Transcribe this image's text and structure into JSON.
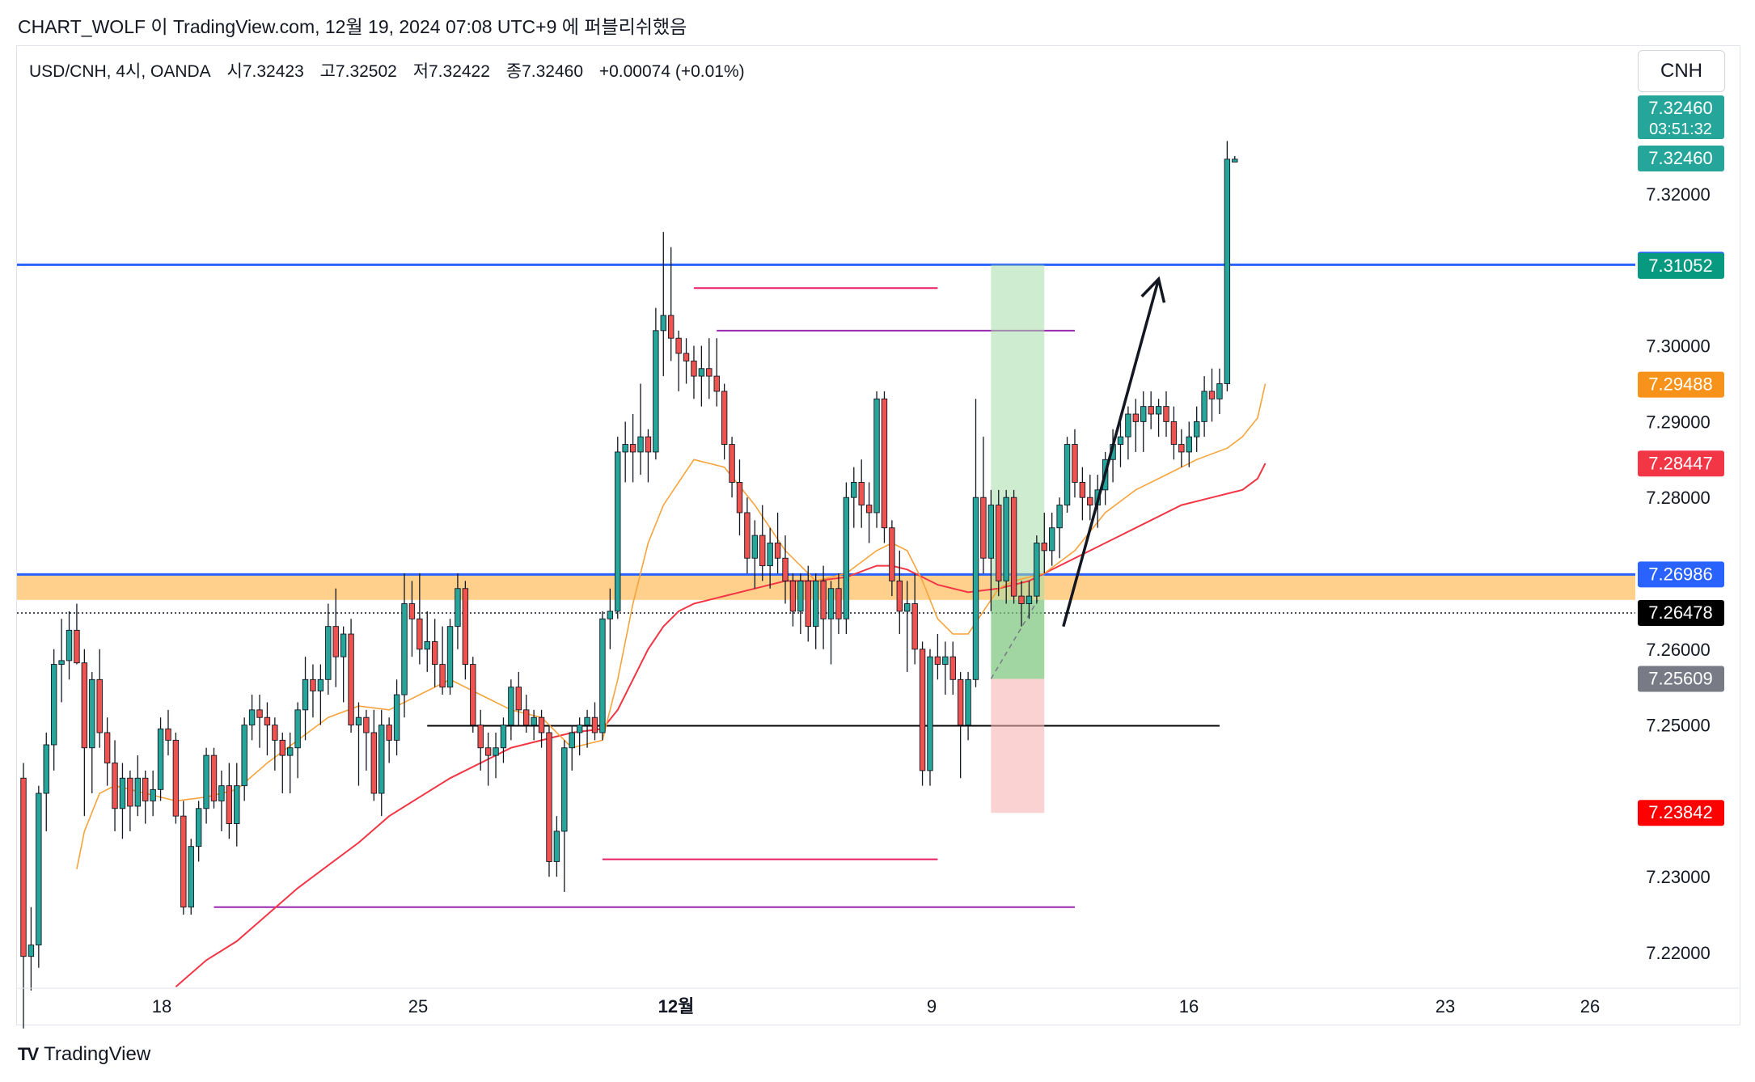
{
  "header": {
    "publisher_line": "CHART_WOLF 이 TradingView.com, 12월 19, 2024 07:08 UTC+9 에 퍼블리쉬했음"
  },
  "legend": {
    "symbol": "USD/CNH, 4시, OANDA",
    "open": "시7.32423",
    "high": "고7.32502",
    "low": "저7.32422",
    "close": "종7.32460",
    "change": "+0.00074 (+0.01%)"
  },
  "currency_button": "CNH",
  "footer": {
    "brand": "TradingView"
  },
  "colors": {
    "up": "#26a69a",
    "down": "#ef5350",
    "blue_level": "#2962ff",
    "zone": "#ffc46e",
    "ema_fast": "#f7a33b",
    "ema_slow": "#f23645",
    "magenta": "#e91e63",
    "purple": "#9c27b0"
  },
  "chart_data": {
    "type": "candlestick",
    "ylim": [
      7.2155,
      7.3395
    ],
    "y_ticks": [
      "7.32000",
      "7.30000",
      "7.29000",
      "7.28000",
      "7.26000",
      "7.25000",
      "7.23000",
      "7.22000"
    ],
    "y_tick_values": [
      7.32,
      7.3,
      7.29,
      7.28,
      7.26,
      7.25,
      7.23,
      7.22
    ],
    "x_ticks": [
      "18",
      "25",
      "12월",
      "9",
      "16",
      "23",
      "26"
    ],
    "price_tags": [
      {
        "label": "7.32460",
        "value": 7.3246,
        "color": "#26a69a",
        "extra": "03:51:32"
      },
      {
        "label": "7.32460",
        "value": 7.32472,
        "color": "#26a69a"
      },
      {
        "label": "7.31068",
        "value": 7.31068,
        "color": "#2962ff"
      },
      {
        "label": "7.31052",
        "value": 7.31052,
        "color": "#089981"
      },
      {
        "label": "7.29488",
        "value": 7.29488,
        "color": "#f7931a"
      },
      {
        "label": "7.28447",
        "value": 7.28447,
        "color": "#f23645"
      },
      {
        "label": "7.26986",
        "value": 7.26986,
        "color": "#2962ff"
      },
      {
        "label": "7.26478",
        "value": 7.26478,
        "color": "#000000"
      },
      {
        "label": "7.25609",
        "value": 7.25609,
        "color": "#787b86"
      },
      {
        "label": "7.23842",
        "value": 7.23842,
        "color": "#ff0000"
      }
    ],
    "levels": [
      {
        "value": 7.31068,
        "color": "#2962ff"
      },
      {
        "value": 7.26986,
        "color": "#2962ff"
      }
    ],
    "zone": {
      "from": 7.2665,
      "to": 7.2698
    },
    "candles": [
      [
        7.243,
        7.245,
        7.21,
        7.2195
      ],
      [
        7.2195,
        7.226,
        7.215,
        7.221
      ],
      [
        7.221,
        7.242,
        7.218,
        7.241
      ],
      [
        7.241,
        7.249,
        7.236,
        7.2474
      ],
      [
        7.2474,
        7.26,
        7.244,
        7.258
      ],
      [
        7.258,
        7.264,
        7.253,
        7.2585
      ],
      [
        7.2585,
        7.265,
        7.256,
        7.2625
      ],
      [
        7.2625,
        7.266,
        7.258,
        7.2582
      ],
      [
        7.2582,
        7.26,
        7.238,
        7.247
      ],
      [
        7.247,
        7.257,
        7.241,
        7.256
      ],
      [
        7.256,
        7.26,
        7.247,
        7.249
      ],
      [
        7.249,
        7.251,
        7.242,
        7.245
      ],
      [
        7.245,
        7.248,
        7.236,
        7.239
      ],
      [
        7.239,
        7.245,
        7.235,
        7.243
      ],
      [
        7.243,
        7.244,
        7.236,
        7.2393
      ],
      [
        7.2393,
        7.246,
        7.238,
        7.243
      ],
      [
        7.243,
        7.244,
        7.237,
        7.24
      ],
      [
        7.24,
        7.244,
        7.238,
        7.2415
      ],
      [
        7.2415,
        7.251,
        7.24,
        7.2495
      ],
      [
        7.2495,
        7.252,
        7.246,
        7.248
      ],
      [
        7.248,
        7.249,
        7.237,
        7.238
      ],
      [
        7.238,
        7.24,
        7.225,
        7.226
      ],
      [
        7.226,
        7.235,
        7.225,
        7.234
      ],
      [
        7.234,
        7.24,
        7.232,
        7.239
      ],
      [
        7.239,
        7.247,
        7.237,
        7.246
      ],
      [
        7.246,
        7.247,
        7.239,
        7.24
      ],
      [
        7.24,
        7.244,
        7.236,
        7.242
      ],
      [
        7.242,
        7.245,
        7.235,
        7.237
      ],
      [
        7.237,
        7.245,
        7.234,
        7.242
      ],
      [
        7.242,
        7.251,
        7.24,
        7.25
      ],
      [
        7.25,
        7.254,
        7.248,
        7.252
      ],
      [
        7.252,
        7.254,
        7.247,
        7.251
      ],
      [
        7.251,
        7.253,
        7.246,
        7.25
      ],
      [
        7.25,
        7.251,
        7.244,
        7.248
      ],
      [
        7.248,
        7.249,
        7.241,
        7.246
      ],
      [
        7.246,
        7.249,
        7.241,
        7.247
      ],
      [
        7.247,
        7.253,
        7.243,
        7.252
      ],
      [
        7.252,
        7.259,
        7.248,
        7.256
      ],
      [
        7.256,
        7.258,
        7.251,
        7.2545
      ],
      [
        7.2545,
        7.258,
        7.25,
        7.256
      ],
      [
        7.256,
        7.266,
        7.254,
        7.263
      ],
      [
        7.263,
        7.268,
        7.255,
        7.259
      ],
      [
        7.259,
        7.263,
        7.253,
        7.262
      ],
      [
        7.262,
        7.264,
        7.249,
        7.25
      ],
      [
        7.25,
        7.253,
        7.242,
        7.251
      ],
      [
        7.251,
        7.252,
        7.244,
        7.249
      ],
      [
        7.249,
        7.252,
        7.24,
        7.241
      ],
      [
        7.241,
        7.252,
        7.238,
        7.25
      ],
      [
        7.25,
        7.251,
        7.245,
        7.248
      ],
      [
        7.248,
        7.256,
        7.246,
        7.254
      ],
      [
        7.254,
        7.27,
        7.251,
        7.266
      ],
      [
        7.266,
        7.269,
        7.259,
        7.264
      ],
      [
        7.264,
        7.27,
        7.258,
        7.26
      ],
      [
        7.26,
        7.265,
        7.257,
        7.261
      ],
      [
        7.261,
        7.264,
        7.255,
        7.258
      ],
      [
        7.258,
        7.263,
        7.254,
        7.255
      ],
      [
        7.255,
        7.264,
        7.254,
        7.263
      ],
      [
        7.263,
        7.27,
        7.26,
        7.268
      ],
      [
        7.268,
        7.269,
        7.256,
        7.258
      ],
      [
        7.258,
        7.259,
        7.249,
        7.25
      ],
      [
        7.25,
        7.252,
        7.244,
        7.247
      ],
      [
        7.247,
        7.249,
        7.242,
        7.246
      ],
      [
        7.246,
        7.249,
        7.243,
        7.247
      ],
      [
        7.247,
        7.251,
        7.245,
        7.25
      ],
      [
        7.25,
        7.256,
        7.248,
        7.255
      ],
      [
        7.255,
        7.257,
        7.25,
        7.252
      ],
      [
        7.252,
        7.254,
        7.249,
        7.25
      ],
      [
        7.25,
        7.252,
        7.248,
        7.251
      ],
      [
        7.251,
        7.252,
        7.247,
        7.249
      ],
      [
        7.249,
        7.25,
        7.23,
        7.232
      ],
      [
        7.232,
        7.238,
        7.23,
        7.236
      ],
      [
        7.236,
        7.248,
        7.228,
        7.247
      ],
      [
        7.247,
        7.25,
        7.244,
        7.249
      ],
      [
        7.249,
        7.251,
        7.246,
        7.25
      ],
      [
        7.25,
        7.252,
        7.247,
        7.251
      ],
      [
        7.251,
        7.253,
        7.248,
        7.249
      ],
      [
        7.249,
        7.265,
        7.248,
        7.264
      ],
      [
        7.264,
        7.268,
        7.26,
        7.265
      ],
      [
        7.265,
        7.288,
        7.264,
        7.286
      ],
      [
        7.286,
        7.29,
        7.282,
        7.287
      ],
      [
        7.287,
        7.291,
        7.282,
        7.286
      ],
      [
        7.286,
        7.295,
        7.283,
        7.288
      ],
      [
        7.288,
        7.289,
        7.282,
        7.286
      ],
      [
        7.286,
        7.305,
        7.285,
        7.302
      ],
      [
        7.302,
        7.315,
        7.296,
        7.304
      ],
      [
        7.304,
        7.313,
        7.298,
        7.301
      ],
      [
        7.301,
        7.302,
        7.294,
        7.299
      ],
      [
        7.299,
        7.301,
        7.295,
        7.298
      ],
      [
        7.298,
        7.3,
        7.293,
        7.296
      ],
      [
        7.296,
        7.3,
        7.292,
        7.297
      ],
      [
        7.297,
        7.301,
        7.293,
        7.296
      ],
      [
        7.296,
        7.301,
        7.292,
        7.294
      ],
      [
        7.294,
        7.295,
        7.285,
        7.287
      ],
      [
        7.287,
        7.288,
        7.28,
        7.282
      ],
      [
        7.282,
        7.285,
        7.275,
        7.278
      ],
      [
        7.278,
        7.28,
        7.27,
        7.272
      ],
      [
        7.272,
        7.277,
        7.268,
        7.275
      ],
      [
        7.275,
        7.279,
        7.269,
        7.271
      ],
      [
        7.271,
        7.276,
        7.268,
        7.274
      ],
      [
        7.274,
        7.278,
        7.27,
        7.272
      ],
      [
        7.272,
        7.275,
        7.266,
        7.269
      ],
      [
        7.269,
        7.27,
        7.263,
        7.265
      ],
      [
        7.265,
        7.27,
        7.262,
        7.269
      ],
      [
        7.269,
        7.271,
        7.261,
        7.263
      ],
      [
        7.263,
        7.27,
        7.26,
        7.269
      ],
      [
        7.269,
        7.271,
        7.26,
        7.264
      ],
      [
        7.264,
        7.269,
        7.258,
        7.268
      ],
      [
        7.268,
        7.27,
        7.262,
        7.264
      ],
      [
        7.264,
        7.282,
        7.262,
        7.28
      ],
      [
        7.28,
        7.284,
        7.276,
        7.282
      ],
      [
        7.282,
        7.285,
        7.276,
        7.279
      ],
      [
        7.279,
        7.282,
        7.274,
        7.278
      ],
      [
        7.278,
        7.294,
        7.276,
        7.293
      ],
      [
        7.293,
        7.294,
        7.274,
        7.276
      ],
      [
        7.276,
        7.277,
        7.267,
        7.269
      ],
      [
        7.269,
        7.273,
        7.262,
        7.265
      ],
      [
        7.265,
        7.269,
        7.257,
        7.266
      ],
      [
        7.266,
        7.27,
        7.258,
        7.26
      ],
      [
        7.26,
        7.261,
        7.242,
        7.244
      ],
      [
        7.244,
        7.26,
        7.242,
        7.259
      ],
      [
        7.259,
        7.262,
        7.256,
        7.258
      ],
      [
        7.258,
        7.261,
        7.254,
        7.259
      ],
      [
        7.259,
        7.261,
        7.254,
        7.256
      ],
      [
        7.256,
        7.257,
        7.243,
        7.25
      ],
      [
        7.25,
        7.257,
        7.248,
        7.256
      ],
      [
        7.256,
        7.293,
        7.255,
        7.28
      ],
      [
        7.28,
        7.288,
        7.27,
        7.272
      ],
      [
        7.272,
        7.281,
        7.265,
        7.279
      ],
      [
        7.279,
        7.281,
        7.267,
        7.269
      ],
      [
        7.269,
        7.281,
        7.266,
        7.28
      ],
      [
        7.28,
        7.281,
        7.266,
        7.267
      ],
      [
        7.267,
        7.269,
        7.263,
        7.266
      ],
      [
        7.266,
        7.269,
        7.264,
        7.267
      ],
      [
        7.267,
        7.275,
        7.266,
        7.274
      ],
      [
        7.274,
        7.278,
        7.27,
        7.273
      ],
      [
        7.273,
        7.278,
        7.271,
        7.276
      ],
      [
        7.276,
        7.28,
        7.272,
        7.279
      ],
      [
        7.279,
        7.288,
        7.278,
        7.287
      ],
      [
        7.287,
        7.289,
        7.28,
        7.282
      ],
      [
        7.282,
        7.284,
        7.277,
        7.28
      ],
      [
        7.28,
        7.283,
        7.277,
        7.279
      ],
      [
        7.279,
        7.283,
        7.276,
        7.281
      ],
      [
        7.281,
        7.286,
        7.279,
        7.285
      ],
      [
        7.285,
        7.289,
        7.282,
        7.287
      ],
      [
        7.287,
        7.29,
        7.284,
        7.288
      ],
      [
        7.288,
        7.292,
        7.285,
        7.291
      ],
      [
        7.291,
        7.293,
        7.286,
        7.29
      ],
      [
        7.29,
        7.294,
        7.286,
        7.292
      ],
      [
        7.292,
        7.294,
        7.289,
        7.291
      ],
      [
        7.291,
        7.293,
        7.288,
        7.292
      ],
      [
        7.292,
        7.294,
        7.288,
        7.29
      ],
      [
        7.29,
        7.292,
        7.285,
        7.287
      ],
      [
        7.287,
        7.289,
        7.284,
        7.286
      ],
      [
        7.286,
        7.29,
        7.284,
        7.288
      ],
      [
        7.288,
        7.292,
        7.286,
        7.29
      ],
      [
        7.29,
        7.296,
        7.288,
        7.294
      ],
      [
        7.294,
        7.297,
        7.29,
        7.293
      ],
      [
        7.293,
        7.297,
        7.291,
        7.295
      ],
      [
        7.295,
        7.327,
        7.294,
        7.3246
      ],
      [
        7.32423,
        7.32502,
        7.32422,
        7.3246
      ]
    ],
    "ema_fast": [
      [
        7,
        7.231
      ],
      [
        8,
        7.236
      ],
      [
        10,
        7.241
      ],
      [
        12,
        7.242
      ],
      [
        14,
        7.2415
      ],
      [
        16,
        7.241
      ],
      [
        20,
        7.24
      ],
      [
        24,
        7.2405
      ],
      [
        28,
        7.2415
      ],
      [
        32,
        7.245
      ],
      [
        36,
        7.248
      ],
      [
        40,
        7.251
      ],
      [
        44,
        7.2525
      ],
      [
        48,
        7.252
      ],
      [
        52,
        7.254
      ],
      [
        56,
        7.256
      ],
      [
        60,
        7.254
      ],
      [
        64,
        7.252
      ],
      [
        68,
        7.251
      ],
      [
        72,
        7.247
      ],
      [
        76,
        7.248
      ],
      [
        78,
        7.256
      ],
      [
        80,
        7.266
      ],
      [
        82,
        7.274
      ],
      [
        84,
        7.279
      ],
      [
        86,
        7.282
      ],
      [
        88,
        7.285
      ],
      [
        92,
        7.284
      ],
      [
        96,
        7.279
      ],
      [
        100,
        7.273
      ],
      [
        104,
        7.269
      ],
      [
        108,
        7.27
      ],
      [
        112,
        7.273
      ],
      [
        114,
        7.274
      ],
      [
        116,
        7.273
      ],
      [
        118,
        7.269
      ],
      [
        120,
        7.264
      ],
      [
        122,
        7.262
      ],
      [
        124,
        7.262
      ],
      [
        126,
        7.265
      ],
      [
        128,
        7.268
      ],
      [
        130,
        7.269
      ],
      [
        134,
        7.27
      ],
      [
        138,
        7.273
      ],
      [
        142,
        7.278
      ],
      [
        146,
        7.281
      ],
      [
        150,
        7.283
      ],
      [
        154,
        7.285
      ],
      [
        158,
        7.2865
      ],
      [
        160,
        7.288
      ],
      [
        162,
        7.2905
      ],
      [
        163,
        7.295
      ]
    ],
    "ema_slow": [
      [
        20,
        7.2155
      ],
      [
        24,
        7.219
      ],
      [
        28,
        7.2215
      ],
      [
        32,
        7.225
      ],
      [
        36,
        7.2285
      ],
      [
        40,
        7.2315
      ],
      [
        44,
        7.2345
      ],
      [
        48,
        7.238
      ],
      [
        52,
        7.2405
      ],
      [
        56,
        7.243
      ],
      [
        60,
        7.245
      ],
      [
        64,
        7.247
      ],
      [
        68,
        7.248
      ],
      [
        72,
        7.249
      ],
      [
        76,
        7.2495
      ],
      [
        78,
        7.252
      ],
      [
        80,
        7.256
      ],
      [
        82,
        7.26
      ],
      [
        84,
        7.263
      ],
      [
        86,
        7.265
      ],
      [
        88,
        7.266
      ],
      [
        92,
        7.267
      ],
      [
        96,
        7.268
      ],
      [
        100,
        7.269
      ],
      [
        104,
        7.269
      ],
      [
        108,
        7.2695
      ],
      [
        112,
        7.271
      ],
      [
        114,
        7.271
      ],
      [
        116,
        7.2705
      ],
      [
        118,
        7.2695
      ],
      [
        120,
        7.2685
      ],
      [
        124,
        7.2675
      ],
      [
        128,
        7.268
      ],
      [
        132,
        7.269
      ],
      [
        136,
        7.271
      ],
      [
        140,
        7.273
      ],
      [
        144,
        7.275
      ],
      [
        148,
        7.277
      ],
      [
        152,
        7.279
      ],
      [
        156,
        7.28
      ],
      [
        160,
        7.281
      ],
      [
        162,
        7.2825
      ],
      [
        163,
        7.2845
      ]
    ],
    "drawn_lines": [
      {
        "from_index": 88,
        "to_index": 120,
        "value": 7.3076,
        "color": "#e91e63"
      },
      {
        "from_index": 91,
        "to_index": 138,
        "value": 7.302,
        "color": "#9c27b0"
      },
      {
        "from_index": 76,
        "to_index": 120,
        "value": 7.2323,
        "color": "#e91e63"
      },
      {
        "from_index": 25,
        "to_index": 138,
        "value": 7.226,
        "color": "#9c27b0"
      },
      {
        "from_index": 53,
        "to_index": 157,
        "value": 7.2499,
        "color": "#000000"
      }
    ],
    "position_box": {
      "from_index": 127,
      "to_index": 134,
      "entry": 7.25609,
      "target": 7.31068,
      "stop": 7.23842
    },
    "arrow": {
      "from": [
        136.5,
        7.263
      ],
      "to": [
        149,
        7.3088
      ]
    }
  }
}
